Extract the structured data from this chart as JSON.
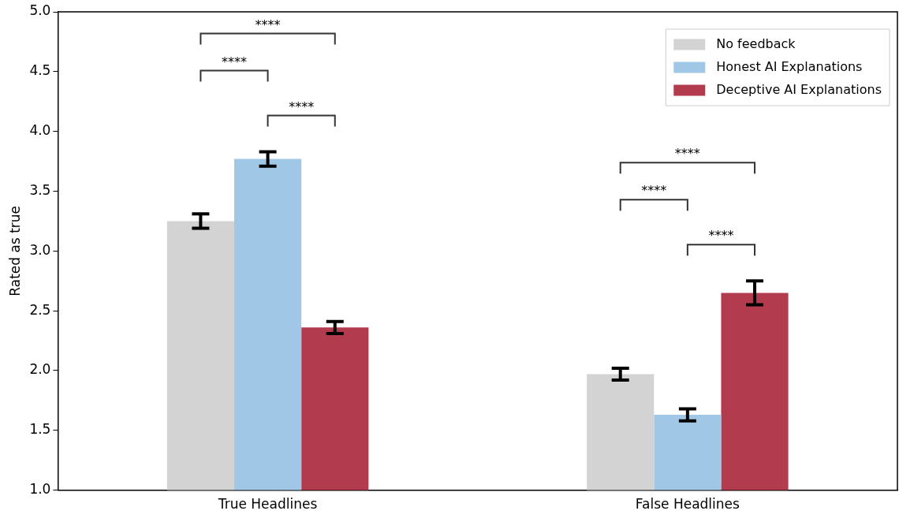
{
  "chart_data": {
    "type": "bar",
    "ylabel": "Rated as true",
    "categories": [
      "True Headlines",
      "False Headlines"
    ],
    "series": [
      {
        "name": "No feedback",
        "color": "#d3d3d3",
        "values": [
          3.25,
          1.97
        ],
        "errors": [
          0.06,
          0.05
        ]
      },
      {
        "name": "Honest AI Explanations",
        "color": "#a0c8e6",
        "values": [
          3.77,
          1.63
        ],
        "errors": [
          0.06,
          0.05
        ]
      },
      {
        "name": "Deceptive AI Explanations",
        "color": "#b33b4e",
        "values": [
          2.36,
          2.65
        ],
        "errors": [
          0.05,
          0.1
        ]
      }
    ],
    "ylim": [
      1.0,
      5.0
    ],
    "yticks": [
      {
        "value": 1,
        "label": "1.0"
      },
      {
        "value": 1.5,
        "label": "1.5"
      },
      {
        "value": 2,
        "label": "2.0"
      },
      {
        "value": 2.5,
        "label": "2.5"
      },
      {
        "value": 3,
        "label": "3.0"
      },
      {
        "value": 3.5,
        "label": "3.5"
      },
      {
        "value": 4,
        "label": "4.0"
      },
      {
        "value": 4.5,
        "label": "4.5"
      },
      {
        "value": 5,
        "label": "5.0"
      }
    ],
    "grid": false,
    "legend": "top right",
    "annotations": [
      "****",
      "****",
      "****",
      "****",
      "****",
      "****"
    ]
  }
}
